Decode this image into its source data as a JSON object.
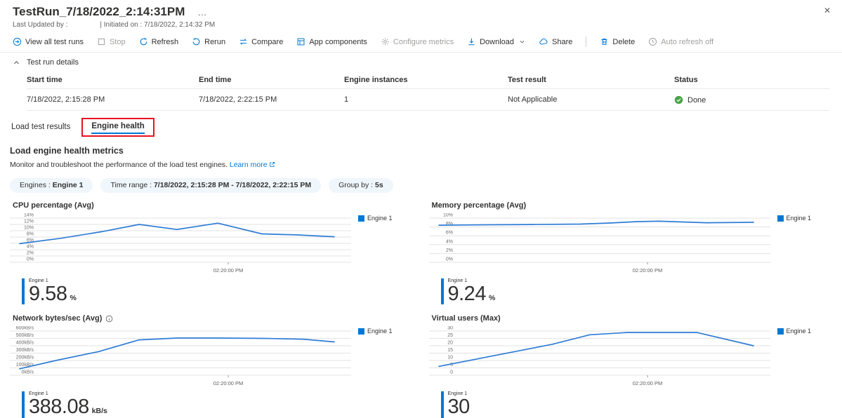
{
  "window": {
    "title": "TestRun_7/18/2022_2:14:31PM",
    "ellipsis": "…",
    "close_glyph": "✕"
  },
  "meta": {
    "last_updated": "Last Updated by :",
    "initiated": "| Initiated on : 7/18/2022, 2:14:32 PM"
  },
  "toolbar": {
    "items": [
      {
        "label": "View all test runs",
        "disabled": false
      },
      {
        "label": "Stop",
        "disabled": true
      },
      {
        "label": "Refresh",
        "disabled": false
      },
      {
        "label": "Rerun",
        "disabled": false
      },
      {
        "label": "Compare",
        "disabled": false
      },
      {
        "label": "App components",
        "disabled": false
      },
      {
        "label": "Configure metrics",
        "disabled": true
      },
      {
        "label": "Download",
        "disabled": false
      },
      {
        "label": "Share",
        "disabled": false
      },
      {
        "label": "Delete",
        "disabled": false
      },
      {
        "label": "Auto refresh off",
        "disabled": true
      }
    ]
  },
  "details": {
    "label": "Test run details"
  },
  "table": {
    "headers": [
      "Start time",
      "End time",
      "Engine instances",
      "Test result",
      "Status"
    ],
    "row": {
      "start_time": "7/18/2022, 2:15:28 PM",
      "end_time": "7/18/2022, 2:22:15 PM",
      "engine_instances": "1",
      "test_result": "Not Applicable",
      "status": "Done"
    }
  },
  "tabs": {
    "items": [
      {
        "label": "Load test results"
      },
      {
        "label": "Engine health"
      }
    ],
    "active": "Engine health"
  },
  "section": {
    "heading": "Load engine health metrics",
    "description": "Monitor and troubleshoot the performance of the load test engines.",
    "link": "Learn more"
  },
  "filters": [
    {
      "label": "Engines : ",
      "value": "Engine 1"
    },
    {
      "label": "Time range : ",
      "value": "7/18/2022, 2:15:28 PM - 7/18/2022, 2:22:15 PM"
    },
    {
      "label": "Group by : ",
      "value": "5s"
    }
  ],
  "colors": {
    "accent": "#0078d4",
    "line": "#2f7cd6",
    "grid": "#e3e3e3",
    "status_green": "#47a347",
    "annotation_red": "#e81123"
  },
  "chart_data": [
    {
      "type": "line",
      "title": "CPU percentage (Avg)",
      "legend": "Engine 1",
      "ylim": [
        0,
        14
      ],
      "ytick_step": 2,
      "y_suffix": "%",
      "xticks": [
        {
          "pos": 0.64,
          "label": "02:20:00 PM"
        }
      ],
      "series": [
        {
          "name": "Engine 1",
          "x_frac": [
            0,
            0.13,
            0.26,
            0.38,
            0.5,
            0.63,
            0.77,
            0.88,
            1.0
          ],
          "values": [
            5.9,
            7.6,
            9.7,
            12.0,
            10.4,
            12.4,
            9.0,
            8.7,
            8.1
          ]
        }
      ],
      "stat": {
        "label": "Engine 1",
        "value": "9.58",
        "unit": "%"
      }
    },
    {
      "type": "line",
      "title": "Memory percentage (Avg)",
      "legend": "Engine 1",
      "ylim": [
        0,
        10
      ],
      "ytick_step": 2,
      "y_suffix": "%",
      "xticks": [
        {
          "pos": 0.64,
          "label": "02:20:00 PM"
        }
      ],
      "series": [
        {
          "name": "Engine 1",
          "x_frac": [
            0,
            0.15,
            0.3,
            0.45,
            0.55,
            0.63,
            0.7,
            0.85,
            1.0
          ],
          "values": [
            8.4,
            8.5,
            8.55,
            8.65,
            8.9,
            9.2,
            9.3,
            8.95,
            9.05
          ]
        }
      ],
      "stat": {
        "label": "Engine 1",
        "value": "9.24",
        "unit": "%"
      }
    },
    {
      "type": "line",
      "title": "Network bytes/sec (Avg)",
      "legend": "Engine 1",
      "ylim": [
        0,
        600
      ],
      "ytick_step": 100,
      "y_suffix": "kB/s",
      "xticks": [
        {
          "pos": 0.64,
          "label": "02:20:00 PM"
        }
      ],
      "series": [
        {
          "name": "Engine 1",
          "x_frac": [
            0,
            0.12,
            0.25,
            0.38,
            0.5,
            0.63,
            0.78,
            0.9,
            1.0
          ],
          "values": [
            88,
            205,
            320,
            480,
            505,
            505,
            500,
            490,
            452
          ]
        }
      ],
      "stat": {
        "label": "Engine 1",
        "value": "388.08",
        "unit": "kB/s"
      }
    },
    {
      "type": "line",
      "title": "Virtual users (Max)",
      "legend": "Engine 1",
      "ylim": [
        0,
        30
      ],
      "ytick_step": 5,
      "y_suffix": "",
      "xticks": [
        {
          "pos": 0.64,
          "label": "02:20:00 PM"
        }
      ],
      "series": [
        {
          "name": "Engine 1",
          "x_frac": [
            0,
            0.12,
            0.24,
            0.36,
            0.48,
            0.6,
            0.72,
            0.82,
            1.0
          ],
          "values": [
            6,
            11,
            16,
            21,
            27.5,
            29,
            29,
            29,
            20
          ]
        }
      ],
      "stat": {
        "label": "Engine 1",
        "value": "30",
        "unit": ""
      }
    }
  ]
}
